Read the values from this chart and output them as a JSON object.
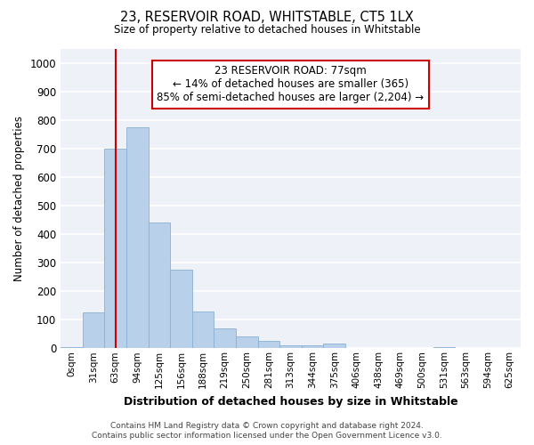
{
  "title": "23, RESERVOIR ROAD, WHITSTABLE, CT5 1LX",
  "subtitle": "Size of property relative to detached houses in Whitstable",
  "xlabel": "Distribution of detached houses by size in Whitstable",
  "ylabel": "Number of detached properties",
  "bar_labels": [
    "0sqm",
    "31sqm",
    "63sqm",
    "94sqm",
    "125sqm",
    "156sqm",
    "188sqm",
    "219sqm",
    "250sqm",
    "281sqm",
    "313sqm",
    "344sqm",
    "375sqm",
    "406sqm",
    "438sqm",
    "469sqm",
    "500sqm",
    "531sqm",
    "563sqm",
    "594sqm",
    "625sqm"
  ],
  "bar_values": [
    5,
    125,
    700,
    775,
    440,
    275,
    130,
    70,
    40,
    25,
    10,
    10,
    15,
    0,
    0,
    0,
    0,
    5,
    0,
    0,
    0
  ],
  "bar_color": "#b8d0ea",
  "bar_edge_color": "#8ab0d4",
  "vline_x": 2.0,
  "vline_color": "#cc0000",
  "annotation_text": "23 RESERVOIR ROAD: 77sqm\n← 14% of detached houses are smaller (365)\n85% of semi-detached houses are larger (2,204) →",
  "annotation_box_color": "#ffffff",
  "annotation_box_edge_color": "#cc0000",
  "ylim": [
    0,
    1050
  ],
  "yticks": [
    0,
    100,
    200,
    300,
    400,
    500,
    600,
    700,
    800,
    900,
    1000
  ],
  "bg_color": "#eef2f8",
  "grid_color": "#ffffff",
  "footer_line1": "Contains HM Land Registry data © Crown copyright and database right 2024.",
  "footer_line2": "Contains public sector information licensed under the Open Government Licence v3.0."
}
